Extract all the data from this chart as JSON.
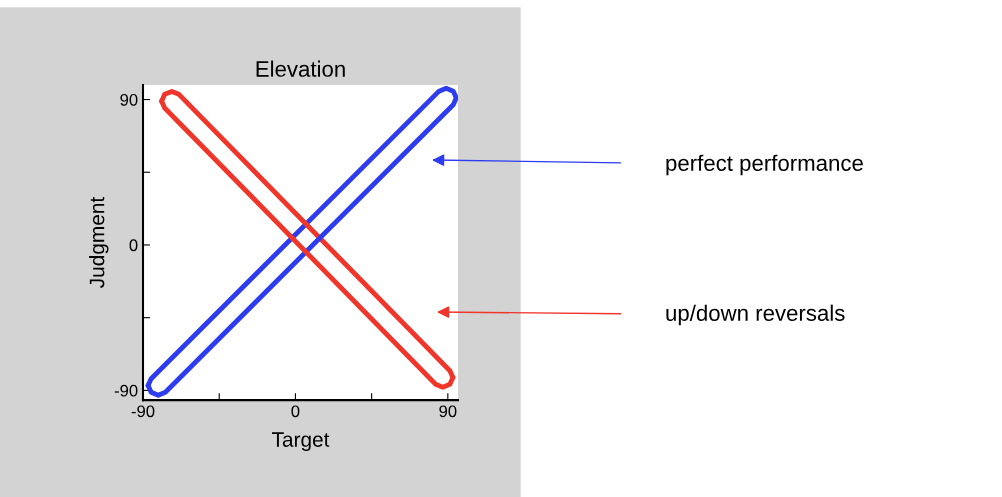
{
  "chart_data": {
    "type": "line",
    "title": "Elevation",
    "xlabel": "Target",
    "ylabel": "Judgment",
    "xlim": [
      -90,
      96
    ],
    "ylim": [
      -96,
      99
    ],
    "xticks": [
      -90,
      {
        "value": -45,
        "label": null
      },
      0,
      {
        "value": 45,
        "label": null
      },
      90
    ],
    "yticks": [
      -90,
      {
        "value": -45,
        "label": null
      },
      0,
      {
        "value": 45,
        "label": null
      },
      90
    ],
    "grid": false,
    "legend": false,
    "marker": "none",
    "line_style": "solid",
    "series": [
      {
        "color": "#2e3cf0",
        "x": [
          -87,
          -85.2,
          84.8,
          89,
          93.2,
          95
        ],
        "values": [
          -87,
          -82.8,
          95.2,
          97,
          95.2,
          91
        ]
      },
      {
        "color": "#f0352a",
        "x": [
          -79,
          -77.2,
          -73,
          -68.8,
          91.2,
          93
        ],
        "values": [
          89,
          93.2,
          95,
          93.2,
          -77.8,
          -82
        ]
      },
      {
        "color": "#2e3cf0",
        "x": [
          -87,
          -85.2,
          -81,
          -76.8,
          93.2,
          95
        ],
        "values": [
          -87,
          -91.2,
          -93,
          -91.2,
          86.8,
          91
        ]
      },
      {
        "color": "#f0352a",
        "x": [
          -79,
          -77.2,
          82.8,
          87,
          91.2,
          93
        ],
        "values": [
          89,
          84.8,
          -86.2,
          -88,
          -86.2,
          -82
        ]
      }
    ],
    "annotations": [
      "perfect performance",
      "up/down reversals"
    ]
  }
}
